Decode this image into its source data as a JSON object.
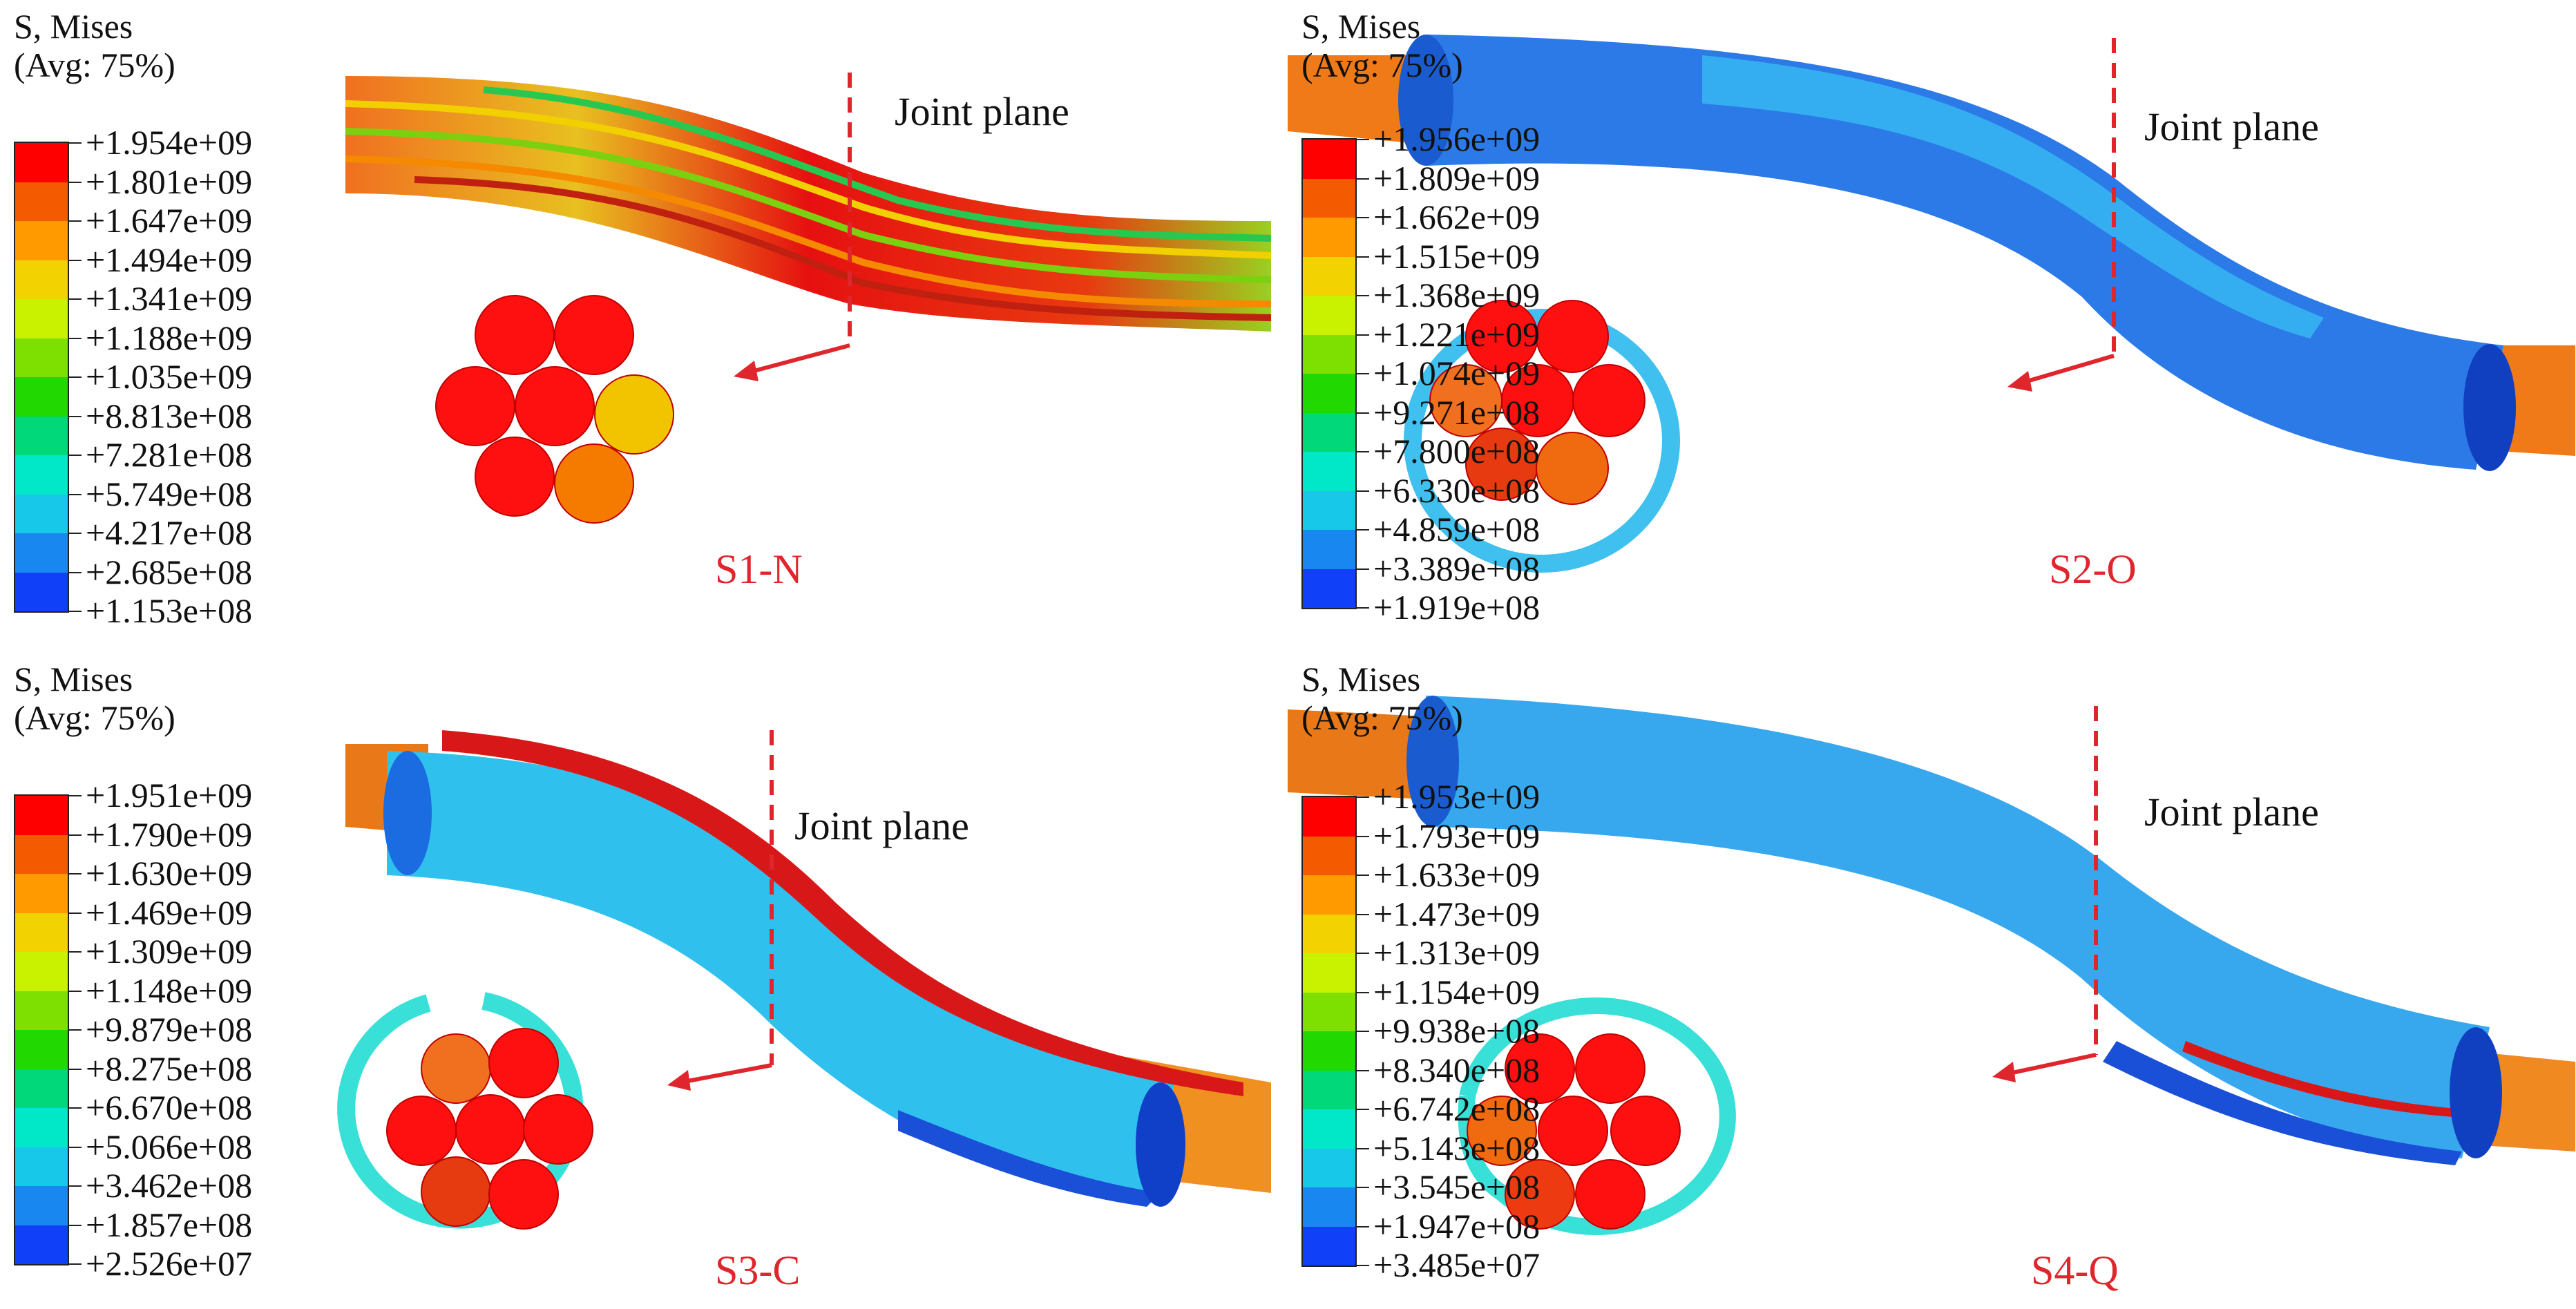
{
  "legend_colors": [
    "#ff0000",
    "#f45a00",
    "#ff9a00",
    "#f2d200",
    "#c8f200",
    "#7de000",
    "#21d800",
    "#00d87a",
    "#00e8c8",
    "#18c8e8",
    "#1888f0",
    "#1040f8",
    "#0000e0"
  ],
  "panels": [
    {
      "id": "s1",
      "legend_title_line1": "S, Mises",
      "legend_title_line2": "(Avg: 75%)",
      "legend_values": [
        "+1.954e+09",
        "+1.801e+09",
        "+1.647e+09",
        "+1.494e+09",
        "+1.341e+09",
        "+1.188e+09",
        "+1.035e+09",
        "+8.813e+08",
        "+7.281e+08",
        "+5.749e+08",
        "+4.217e+08",
        "+2.685e+08",
        "+1.153e+08"
      ],
      "joint_label": "Joint plane",
      "case_label": "S1-N"
    },
    {
      "id": "s2",
      "legend_title_line1": "S, Mises",
      "legend_title_line2": "(Avg: 75%)",
      "legend_values": [
        "+1.956e+09",
        "+1.809e+09",
        "+1.662e+09",
        "+1.515e+09",
        "+1.368e+09",
        "+1.221e+09",
        "+1.074e+09",
        "+9.271e+08",
        "+7.800e+08",
        "+6.330e+08",
        "+4.859e+08",
        "+3.389e+08",
        "+1.919e+08"
      ],
      "joint_label": "Joint plane",
      "case_label": "S2-O"
    },
    {
      "id": "s3",
      "legend_title_line1": "S, Mises",
      "legend_title_line2": "(Avg: 75%)",
      "legend_values": [
        "+1.951e+09",
        "+1.790e+09",
        "+1.630e+09",
        "+1.469e+09",
        "+1.309e+09",
        "+1.148e+09",
        "+9.879e+08",
        "+8.275e+08",
        "+6.670e+08",
        "+5.066e+08",
        "+3.462e+08",
        "+1.857e+08",
        "+2.526e+07"
      ],
      "joint_label": "Joint plane",
      "case_label": "S3-C"
    },
    {
      "id": "s4",
      "legend_title_line1": "S, Mises",
      "legend_title_line2": "(Avg: 75%)",
      "legend_values": [
        "+1.953e+09",
        "+1.793e+09",
        "+1.633e+09",
        "+1.473e+09",
        "+1.313e+09",
        "+1.154e+09",
        "+9.938e+08",
        "+8.340e+08",
        "+6.742e+08",
        "+5.143e+08",
        "+3.545e+08",
        "+1.947e+08",
        "+3.485e+07"
      ],
      "joint_label": "Joint plane",
      "case_label": "S4-Q"
    }
  ]
}
